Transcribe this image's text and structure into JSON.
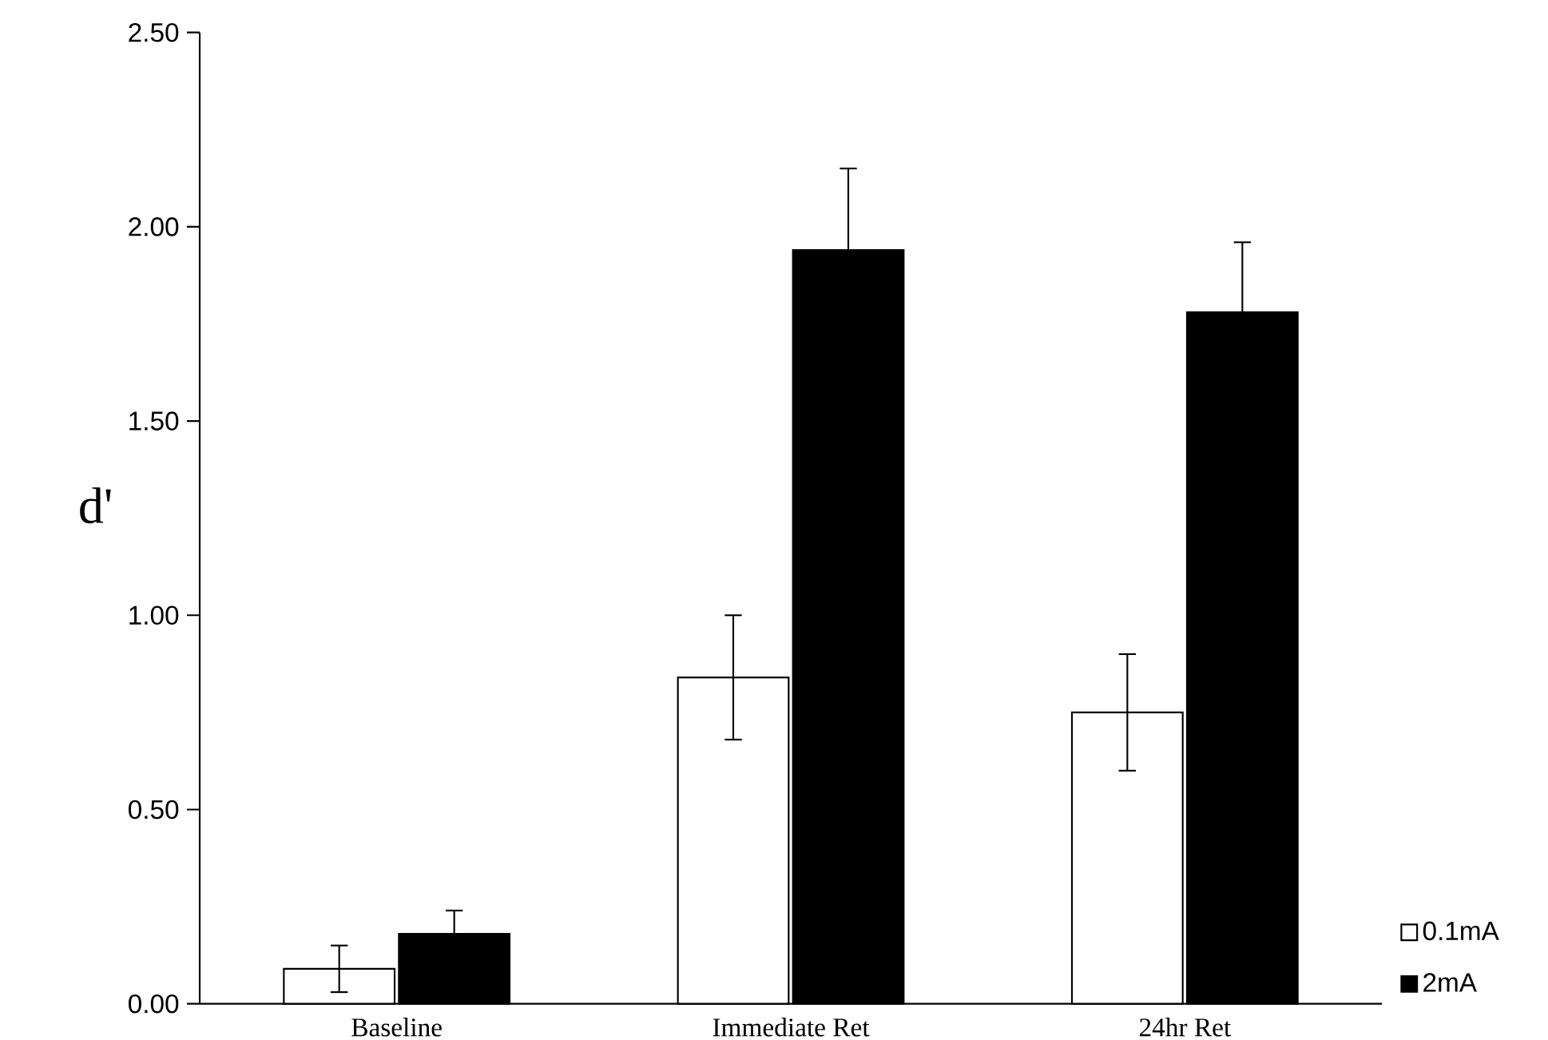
{
  "chart_data": {
    "type": "bar",
    "ylabel": "d'",
    "categories": [
      "Baseline",
      "Immediate Ret",
      "24hr Ret"
    ],
    "series": [
      {
        "name": "0.1mA",
        "color": "#ffffff",
        "values": [
          0.09,
          0.84,
          0.75
        ],
        "errors": [
          0.06,
          0.16,
          0.15
        ]
      },
      {
        "name": "2mA",
        "color": "#000000",
        "values": [
          0.18,
          1.94,
          1.78
        ],
        "errors": [
          0.06,
          0.21,
          0.18
        ]
      }
    ],
    "ylim": [
      0,
      2.5
    ],
    "yticks": [
      {
        "value": 0,
        "label": "0.00"
      },
      {
        "value": 0.5,
        "label": "0.50"
      },
      {
        "value": 1,
        "label": "1.00"
      },
      {
        "value": 1.5,
        "label": "1.50"
      },
      {
        "value": 2,
        "label": "2.00"
      },
      {
        "value": 2.5,
        "label": "2.50"
      }
    ],
    "legend": "bottom right"
  }
}
